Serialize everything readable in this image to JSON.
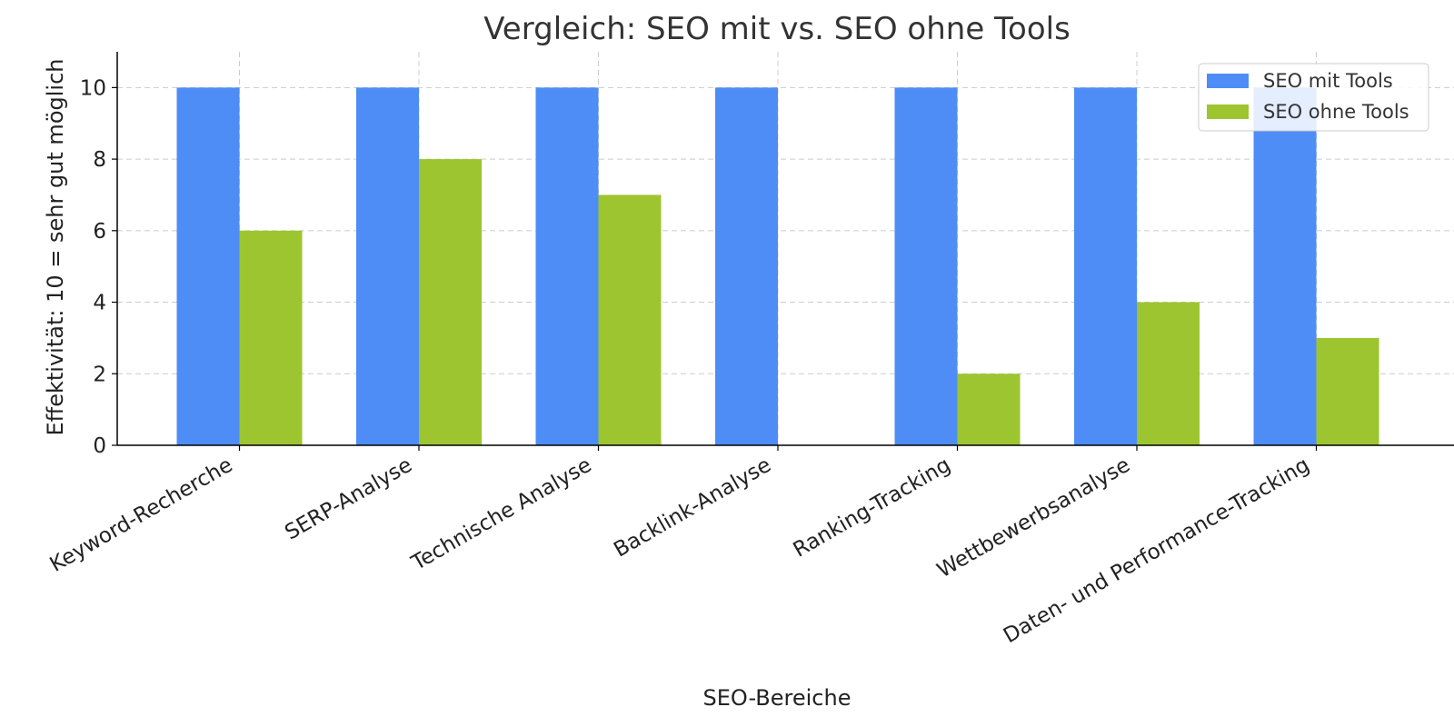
{
  "chart_data": {
    "type": "bar",
    "title": "Vergleich: SEO mit vs. SEO ohne Tools",
    "xlabel": "SEO-Bereiche",
    "ylabel": "Effektivität: 10 = sehr gut möglich",
    "categories": [
      "Keyword-Recherche",
      "SERP-Analyse",
      "Technische Analyse",
      "Backlink-Analyse",
      "Ranking-Tracking",
      "Wettbewerbsanalyse",
      "Daten- und Performance-Tracking"
    ],
    "series": [
      {
        "name": "SEO mit Tools",
        "color": "#4e8df5",
        "values": [
          10,
          10,
          10,
          10,
          10,
          10,
          10
        ]
      },
      {
        "name": "SEO ohne Tools",
        "color": "#9dc52f",
        "values": [
          6,
          8,
          7,
          0,
          2,
          4,
          3
        ]
      }
    ],
    "ylim": [
      0,
      11
    ],
    "yticks": [
      0,
      2,
      4,
      6,
      8,
      10
    ],
    "grid": true,
    "legend_position": "top-right"
  }
}
